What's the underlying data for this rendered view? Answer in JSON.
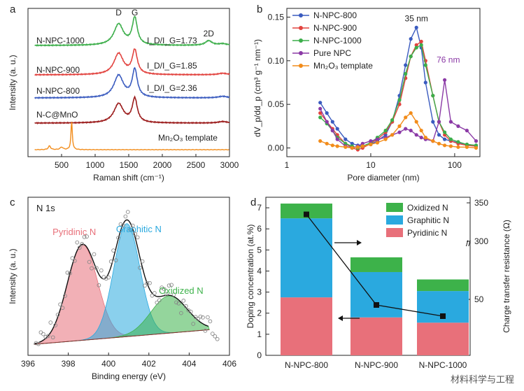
{
  "watermark": "材料科学与工程",
  "colors": {
    "n800": "#3a5bbf",
    "n900": "#e2433f",
    "n1000": "#3cae4a",
    "nc": "#9b1b1b",
    "mn": "#f28c1a",
    "pure": "#8b3aa6",
    "pyr": "#e8707a",
    "gra": "#2aa9df",
    "oxi": "#3db24a"
  },
  "chart_data": [
    {
      "panel": "a",
      "type": "line",
      "xlabel": "Raman shift (cm⁻¹)",
      "ylabel": "Intensity (a. u.)",
      "xlim": [
        0,
        3000
      ],
      "xticks": [
        500,
        1000,
        1500,
        2000,
        2500,
        3000
      ],
      "peak_labels": [
        "D",
        "G",
        "2D"
      ],
      "series": [
        {
          "name": "N-NPC-1000",
          "ratio": "1.73",
          "ratio_label": "I_D/I_G=1.73",
          "D": 0.55,
          "G": 0.7,
          "twoD": 0.12
        },
        {
          "name": "N-NPC-900",
          "ratio": "1.85",
          "ratio_label": "I_D/I_G=1.85",
          "D": 0.55,
          "G": 0.62,
          "twoD": 0
        },
        {
          "name": "N-NPC-800",
          "ratio": "2.36",
          "ratio_label": "I_D/I_G=2.36",
          "D": 0.58,
          "G": 0.72,
          "twoD": 0
        },
        {
          "name": "N-C@MnO",
          "D": 0.5,
          "G": 0.62,
          "twoD": 0
        },
        {
          "name": "Mn₂O₃ template",
          "peak_x": 650
        }
      ]
    },
    {
      "panel": "b",
      "type": "line",
      "scale": "log-x",
      "xlabel": "Pore diameter (nm)",
      "ylabel": "dV_p/dd_p (cm³ g⁻¹ nm⁻¹)",
      "xlim": [
        1,
        200
      ],
      "ylim": [
        -0.01,
        0.16
      ],
      "xticks": [
        1,
        10,
        100
      ],
      "yticks": [
        0.0,
        0.05,
        0.1,
        0.15
      ],
      "annotations": [
        "35 nm",
        "76 nm"
      ],
      "x": [
        2.5,
        3,
        3.5,
        4,
        5,
        6,
        7,
        8,
        10,
        12,
        15,
        18,
        22,
        26,
        30,
        35,
        40,
        45,
        55,
        65,
        76,
        90,
        110,
        140,
        180
      ],
      "series": [
        {
          "name": "N-NPC-800",
          "values": [
            0.052,
            0.04,
            0.03,
            0.022,
            0.01,
            0.005,
            0.003,
            0.002,
            0.004,
            0.008,
            0.015,
            0.03,
            0.06,
            0.095,
            0.125,
            0.138,
            0.115,
            0.075,
            0.03,
            0.015,
            0.01,
            0.008,
            0.006,
            0.004,
            0.003
          ]
        },
        {
          "name": "N-NPC-900",
          "values": [
            0.04,
            0.03,
            0.022,
            0.015,
            0.005,
            0.0,
            -0.002,
            0.0,
            0.005,
            0.01,
            0.018,
            0.03,
            0.05,
            0.08,
            0.105,
            0.118,
            0.122,
            0.1,
            0.06,
            0.03,
            0.015,
            0.008,
            0.005,
            0.003,
            0.002
          ]
        },
        {
          "name": "N-NPC-1000",
          "values": [
            0.035,
            0.028,
            0.02,
            0.012,
            0.005,
            0.002,
            0.0,
            0.002,
            0.006,
            0.012,
            0.02,
            0.032,
            0.055,
            0.085,
            0.105,
            0.115,
            0.118,
            0.095,
            0.06,
            0.03,
            0.018,
            0.01,
            0.007,
            0.004,
            0.003
          ]
        },
        {
          "name": "Pure NPC",
          "values": [
            0.045,
            0.03,
            0.02,
            0.01,
            0.002,
            0.0,
            0.002,
            0.005,
            0.008,
            0.01,
            0.012,
            0.015,
            0.018,
            0.022,
            0.02,
            0.015,
            0.012,
            0.01,
            0.008,
            0.03,
            0.078,
            0.03,
            0.025,
            0.02,
            0.008
          ]
        },
        {
          "name": "Mn₂O₃ template",
          "values": [
            0.008,
            0.005,
            0.003,
            0.002,
            0.001,
            0.0,
            0.001,
            0.002,
            0.004,
            0.006,
            0.01,
            0.015,
            0.025,
            0.035,
            0.04,
            0.03,
            0.02,
            0.012,
            0.008,
            0.005,
            0.003,
            0.002,
            0.001,
            0.001,
            0.0
          ]
        }
      ]
    },
    {
      "panel": "c",
      "type": "area",
      "title": "N 1s",
      "xlabel": "Binding energy (eV)",
      "ylabel": "Intensity (a. u.)",
      "xlim": [
        396,
        406
      ],
      "xticks": [
        396,
        398,
        400,
        402,
        404,
        406
      ],
      "series": [
        {
          "name": "Pyridinic N",
          "center": 398.7,
          "height": 0.72,
          "sigma": 0.75
        },
        {
          "name": "Graphitic N",
          "center": 400.9,
          "height": 0.85,
          "sigma": 0.65
        },
        {
          "name": "Oxidized N",
          "center": 403.0,
          "height": 0.28,
          "sigma": 0.9
        }
      ]
    },
    {
      "panel": "d",
      "type": "bar",
      "stacked": true,
      "categories": [
        "N-NPC-800",
        "N-NPC-900",
        "N-NPC-1000"
      ],
      "ylabel": "Doping concentration (at.%)",
      "y2label": "Charge transfer resistance (Ω)",
      "ylim": [
        0,
        7.5
      ],
      "yticks": [
        0,
        1,
        2,
        3,
        4,
        5,
        6,
        7
      ],
      "y2ticks": [
        50,
        300,
        350
      ],
      "series": [
        {
          "name": "Pyridinic N",
          "values": [
            2.75,
            1.8,
            1.55
          ]
        },
        {
          "name": "Graphitic N",
          "values": [
            3.75,
            2.15,
            1.5
          ]
        },
        {
          "name": "Oxidized N",
          "values": [
            0.7,
            0.7,
            0.55
          ]
        }
      ],
      "resistance": [
        335,
        45,
        35
      ]
    }
  ]
}
